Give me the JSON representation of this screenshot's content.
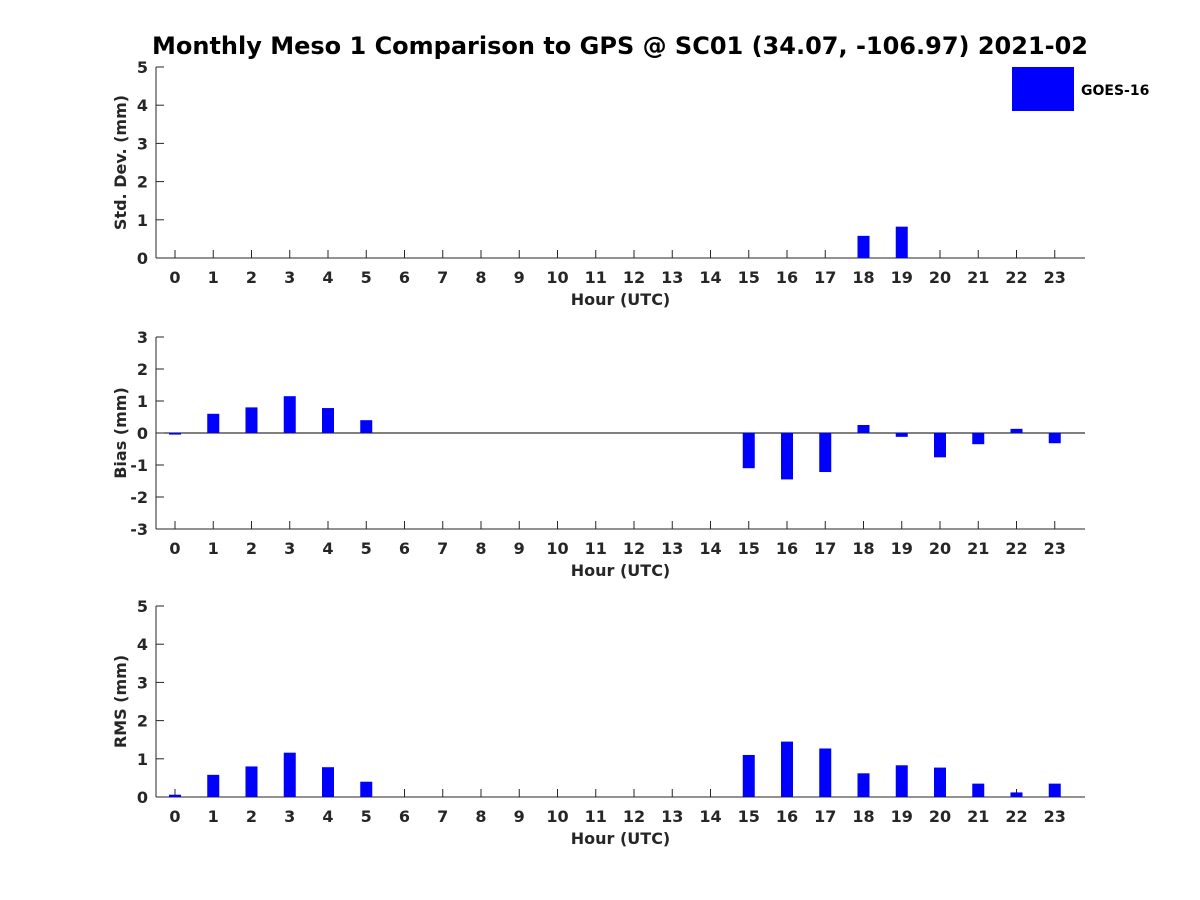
{
  "title": "Monthly Meso 1 Comparison to GPS @ SC01 (34.07, -106.97) 2021-02",
  "legend": {
    "label": "GOES-16",
    "color": "#0000ff"
  },
  "colors": {
    "bar": "#0000ff",
    "axis": "#262626"
  },
  "chart_data": [
    {
      "type": "bar",
      "panel": "std-dev",
      "categories": [
        "0",
        "1",
        "2",
        "3",
        "4",
        "5",
        "6",
        "7",
        "8",
        "9",
        "10",
        "11",
        "12",
        "13",
        "14",
        "15",
        "16",
        "17",
        "18",
        "19",
        "20",
        "21",
        "22",
        "23"
      ],
      "series": [
        {
          "name": "GOES-16",
          "values": [
            0,
            0,
            0,
            0,
            0,
            0,
            0,
            0,
            0,
            0,
            0,
            0,
            0,
            0,
            0,
            0,
            0,
            0,
            0.58,
            0.82,
            0,
            0,
            0,
            0
          ]
        }
      ],
      "xlabel": "Hour (UTC)",
      "ylabel": "Std. Dev. (mm)",
      "ylim": [
        0,
        5
      ],
      "yticks": [
        "0",
        "1",
        "2",
        "3",
        "4",
        "5"
      ],
      "legend": "top-right",
      "grid": false
    },
    {
      "type": "bar",
      "panel": "bias",
      "categories": [
        "0",
        "1",
        "2",
        "3",
        "4",
        "5",
        "6",
        "7",
        "8",
        "9",
        "10",
        "11",
        "12",
        "13",
        "14",
        "15",
        "16",
        "17",
        "18",
        "19",
        "20",
        "21",
        "22",
        "23"
      ],
      "series": [
        {
          "name": "GOES-16",
          "values": [
            -0.05,
            0.6,
            0.8,
            1.15,
            0.78,
            0.4,
            0,
            0,
            0,
            0,
            0,
            0,
            0,
            0,
            0,
            -1.1,
            -1.45,
            -1.22,
            0.25,
            -0.12,
            -0.76,
            -0.35,
            0.13,
            -0.32
          ]
        }
      ],
      "xlabel": "Hour (UTC)",
      "ylabel": "Bias (mm)",
      "ylim": [
        -3,
        3
      ],
      "yticks": [
        "-3",
        "-2",
        "-1",
        "0",
        "1",
        "2",
        "3"
      ],
      "zero_line": true,
      "grid": false
    },
    {
      "type": "bar",
      "panel": "rms",
      "categories": [
        "0",
        "1",
        "2",
        "3",
        "4",
        "5",
        "6",
        "7",
        "8",
        "9",
        "10",
        "11",
        "12",
        "13",
        "14",
        "15",
        "16",
        "17",
        "18",
        "19",
        "20",
        "21",
        "22",
        "23"
      ],
      "series": [
        {
          "name": "GOES-16",
          "values": [
            0.06,
            0.58,
            0.8,
            1.16,
            0.78,
            0.4,
            0,
            0,
            0,
            0,
            0,
            0,
            0,
            0,
            0,
            1.1,
            1.45,
            1.27,
            0.62,
            0.83,
            0.77,
            0.35,
            0.12,
            0.35
          ]
        }
      ],
      "xlabel": "Hour (UTC)",
      "ylabel": "RMS (mm)",
      "ylim": [
        0,
        5
      ],
      "yticks": [
        "0",
        "1",
        "2",
        "3",
        "4",
        "5"
      ],
      "grid": false
    }
  ]
}
